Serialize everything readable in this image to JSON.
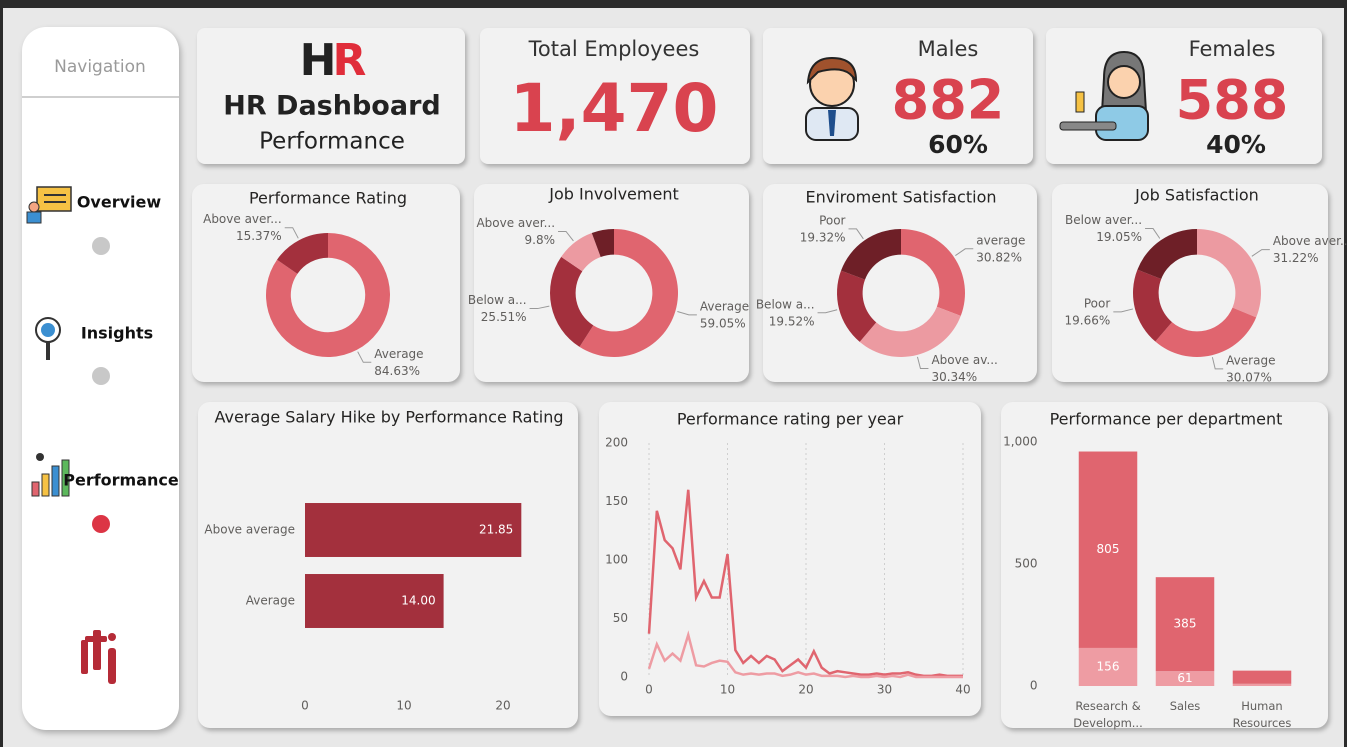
{
  "navigation": {
    "title": "Navigation",
    "items": [
      {
        "label": "Overview"
      },
      {
        "label": "Insights"
      },
      {
        "label": "Performance"
      }
    ]
  },
  "header": {
    "logo": "HR",
    "title": "HR Dashboard",
    "subtitle": "Performance"
  },
  "kpis": [
    {
      "title": "Total Employees",
      "value": "1,470"
    },
    {
      "title": "Males",
      "value": "882",
      "share": "60%"
    },
    {
      "title": "Females",
      "value": "588",
      "share": "40%"
    }
  ],
  "chart_data": [
    {
      "type": "pie",
      "donut": true,
      "title": "Performance Rating",
      "categories": [
        "Average",
        "Above aver..."
      ],
      "values": [
        84.63,
        15.37
      ],
      "value_labels": [
        "84.63%",
        "15.37%"
      ],
      "colors": [
        "#e0656f",
        "#a3303d"
      ]
    },
    {
      "type": "pie",
      "donut": true,
      "title": "Job Involvement",
      "categories": [
        "Average",
        "Below a...",
        "Above aver...",
        null
      ],
      "values": [
        59.05,
        25.51,
        9.8,
        5.64
      ],
      "value_labels": [
        "59.05%",
        "25.51%",
        "9.8%",
        null
      ],
      "colors": [
        "#e0656f",
        "#a3303d",
        "#ec9aa1",
        "#6e1f27"
      ]
    },
    {
      "type": "pie",
      "donut": true,
      "title": "Enviroment Satisfaction",
      "categories": [
        "average",
        "Above av...",
        "Below a...",
        "Poor"
      ],
      "values": [
        30.82,
        30.34,
        19.52,
        19.32
      ],
      "value_labels": [
        "30.82%",
        "30.34%",
        "19.52%",
        "19.32%"
      ],
      "colors": [
        "#e0656f",
        "#ec9aa1",
        "#a3303d",
        "#6e1f27"
      ]
    },
    {
      "type": "pie",
      "donut": true,
      "title": "Job Satisfaction",
      "categories": [
        "Above aver...",
        "Average",
        "Poor",
        "Below aver..."
      ],
      "values": [
        31.22,
        30.07,
        19.66,
        19.05
      ],
      "value_labels": [
        "31.22%",
        "30.07%",
        "19.66%",
        "19.05%"
      ],
      "colors": [
        "#ec9aa1",
        "#e0656f",
        "#a3303d",
        "#6e1f27"
      ]
    },
    {
      "type": "bar",
      "orientation": "horizontal",
      "title": "Average Salary Hike by Performance Rating",
      "categories": [
        "Above average",
        "Average"
      ],
      "values": [
        21.85,
        14.0
      ],
      "value_labels": [
        "21.85",
        "14.00"
      ],
      "color": "#a3303d",
      "xlim": [
        0,
        25
      ],
      "xticks": [
        0,
        10,
        20
      ]
    },
    {
      "type": "line",
      "title": "Performance rating per year",
      "x": [
        0,
        1,
        2,
        3,
        4,
        5,
        6,
        7,
        8,
        9,
        10,
        11,
        12,
        13,
        14,
        15,
        16,
        17,
        18,
        19,
        20,
        21,
        22,
        23,
        24,
        25,
        26,
        27,
        28,
        29,
        30,
        31,
        32,
        33,
        34,
        35,
        36,
        37,
        38,
        39,
        40
      ],
      "series": [
        {
          "color": "#e0656f",
          "values": [
            37,
            142,
            117,
            110,
            92,
            160,
            68,
            82,
            68,
            68,
            105,
            23,
            12,
            18,
            12,
            18,
            15,
            5,
            10,
            15,
            8,
            22,
            8,
            3,
            5,
            4,
            3,
            2,
            2,
            3,
            2,
            3,
            3,
            4,
            2,
            1,
            1,
            2,
            1,
            1,
            1
          ]
        },
        {
          "color": "#ee9ca3",
          "values": [
            7,
            28,
            14,
            20,
            14,
            36,
            10,
            9,
            12,
            14,
            13,
            4,
            2,
            3,
            2,
            3,
            3,
            1,
            2,
            4,
            2,
            3,
            1,
            1,
            1,
            0,
            1,
            0,
            0,
            1,
            0,
            1,
            0,
            2,
            0,
            0,
            0,
            0,
            0,
            0,
            0
          ]
        }
      ],
      "xlim": [
        0,
        40
      ],
      "xticks": [
        0,
        10,
        20,
        30,
        40
      ],
      "ylim": [
        0,
        200
      ],
      "yticks": [
        0,
        50,
        100,
        150,
        200
      ],
      "grid": true
    },
    {
      "type": "bar",
      "stacked": true,
      "title": "Performance per department",
      "categories": [
        "Research & Developm...",
        "Sales",
        "Human Resources"
      ],
      "series": [
        {
          "color": "#ee9ca3",
          "values": [
            156,
            61,
            9
          ]
        },
        {
          "color": "#e0656f",
          "values": [
            805,
            385,
            54
          ]
        }
      ],
      "ylim": [
        0,
        1000
      ],
      "yticks": [
        0,
        500,
        {
          "value": 1000,
          "label": "1,000"
        }
      ]
    }
  ]
}
